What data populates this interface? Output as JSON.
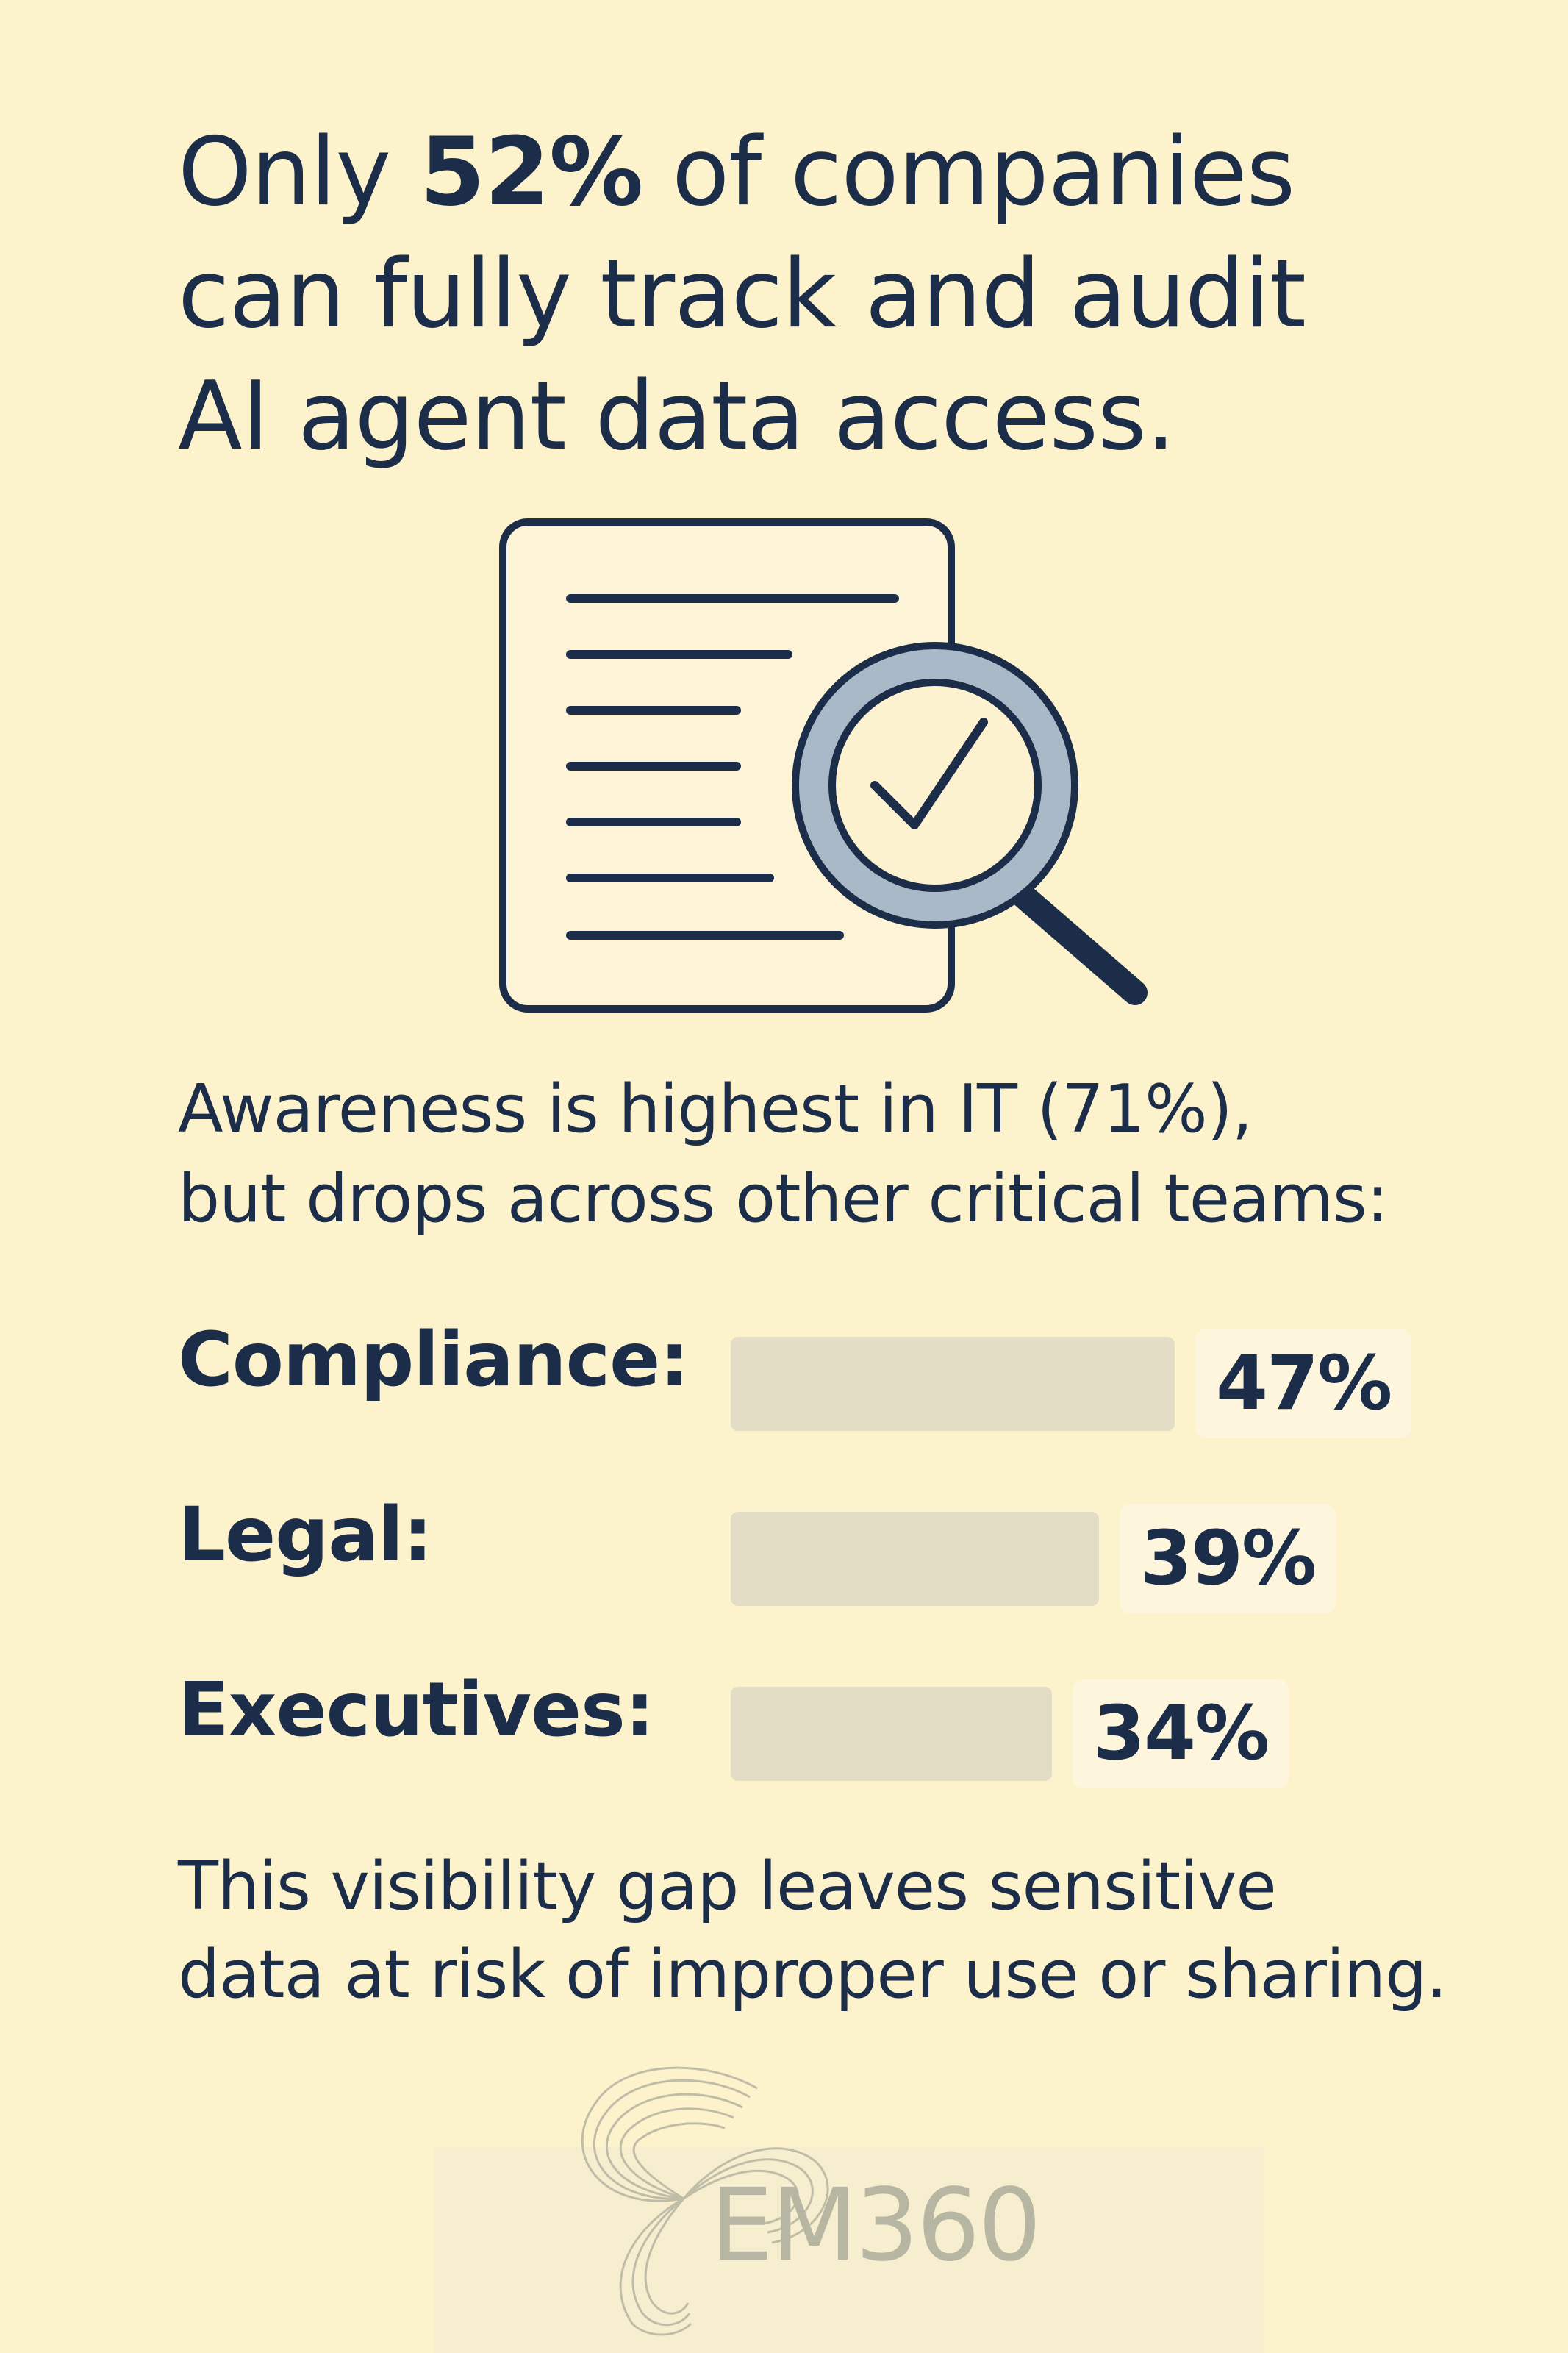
{
  "headline": {
    "pre": "Only ",
    "highlight": "52%",
    "line1_rest": " of companies",
    "line2": "can fully track and audit",
    "line3": "AI agent data access."
  },
  "illustration": {
    "icon": "document-magnifier-check-icon"
  },
  "subtext": {
    "line1": "Awareness is highest in IT (71%),",
    "line2": "but drops across other critical teams:"
  },
  "chart_data": {
    "type": "bar",
    "orientation": "horizontal",
    "categories": [
      "Compliance:",
      "Legal:",
      "Executives:"
    ],
    "values": [
      47,
      39,
      34
    ],
    "value_labels": [
      "47%",
      "39%",
      "34%"
    ],
    "unit": "%",
    "xlim": [
      0,
      100
    ],
    "bar_color": "#e3ddc6",
    "grid": false,
    "legend": false
  },
  "closing": {
    "line1": "This visibility gap leaves sensitive",
    "line2": "data at risk of improper use or sharing."
  },
  "logo": {
    "text": "EM360",
    "icon": "em360-swirl-logo-icon"
  },
  "colors": {
    "background": "#fcf2cc",
    "text": "#1b2d48",
    "bar": "#e3ddc6",
    "lens": "#a9b9c8"
  }
}
